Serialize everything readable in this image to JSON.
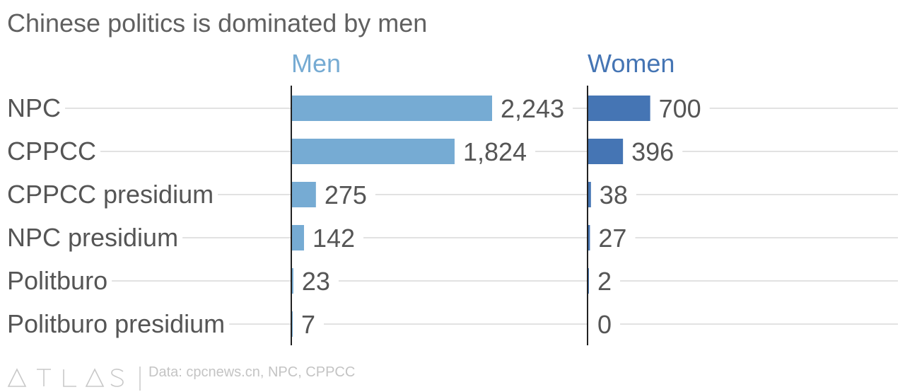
{
  "title": "Chinese politics is dominated by men",
  "footer": {
    "brand": "ATLAS",
    "source": "Data: cpcnews.cn, NPC, CPPCC"
  },
  "colors": {
    "men": "#76abd3",
    "women": "#4575b4",
    "text": "#555555",
    "grid": "#d9d9d9",
    "axis": "#222222"
  },
  "chart_data": {
    "type": "bar",
    "orientation": "horizontal",
    "title": "Chinese politics is dominated by men",
    "categories": [
      "NPC",
      "CPPCC",
      "CPPCC presidium",
      "NPC presidium",
      "Politburo",
      "Politburo presidium"
    ],
    "series": [
      {
        "name": "Men",
        "values": [
          2243,
          1824,
          275,
          142,
          23,
          7
        ],
        "labels": [
          "2,243",
          "1,824",
          "275",
          "142",
          "23",
          "7"
        ],
        "color": "#76abd3"
      },
      {
        "name": "Women",
        "values": [
          700,
          396,
          38,
          27,
          2,
          0
        ],
        "labels": [
          "700",
          "396",
          "38",
          "27",
          "2",
          "0"
        ],
        "color": "#4575b4"
      }
    ],
    "xlim": [
      0,
      2800
    ],
    "grid": true,
    "legend": "column headers above each panel"
  }
}
